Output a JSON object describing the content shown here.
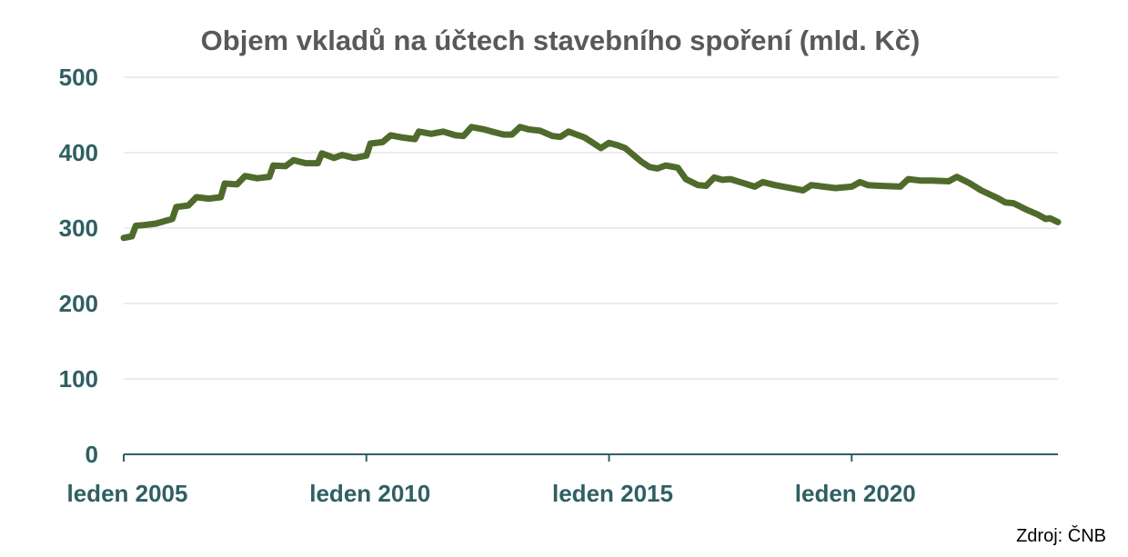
{
  "chart_data": {
    "type": "line",
    "title": "Objem vkladů na účtech stavebního spoření (mld. Kč)",
    "xlabel": "",
    "ylabel": "",
    "ylim": [
      0,
      500
    ],
    "yticks": [
      0,
      100,
      200,
      300,
      400,
      500
    ],
    "xlim": [
      "2005-01",
      "2024-04"
    ],
    "xticks": [
      {
        "value": "2005-01",
        "label": "leden 2005"
      },
      {
        "value": "2010-01",
        "label": "leden 2010"
      },
      {
        "value": "2015-01",
        "label": "leden 2015"
      },
      {
        "value": "2020-01",
        "label": "leden 2020"
      }
    ],
    "grid": true,
    "legend": "none",
    "line_color": "#4f6b2c",
    "series": [
      {
        "name": "",
        "points": [
          [
            "2005-01",
            287
          ],
          [
            "2005-03",
            289
          ],
          [
            "2005-04",
            303
          ],
          [
            "2005-06",
            304
          ],
          [
            "2005-09",
            306
          ],
          [
            "2005-11",
            309
          ],
          [
            "2006-01",
            312
          ],
          [
            "2006-02",
            328
          ],
          [
            "2006-05",
            330
          ],
          [
            "2006-07",
            341
          ],
          [
            "2006-10",
            339
          ],
          [
            "2007-01",
            341
          ],
          [
            "2007-02",
            359
          ],
          [
            "2007-05",
            358
          ],
          [
            "2007-07",
            369
          ],
          [
            "2007-10",
            366
          ],
          [
            "2008-01",
            368
          ],
          [
            "2008-02",
            383
          ],
          [
            "2008-05",
            382
          ],
          [
            "2008-07",
            390
          ],
          [
            "2008-10",
            386
          ],
          [
            "2009-01",
            386
          ],
          [
            "2009-02",
            399
          ],
          [
            "2009-05",
            393
          ],
          [
            "2009-07",
            397
          ],
          [
            "2009-10",
            393
          ],
          [
            "2010-01",
            396
          ],
          [
            "2010-02",
            412
          ],
          [
            "2010-05",
            414
          ],
          [
            "2010-07",
            423
          ],
          [
            "2010-10",
            420
          ],
          [
            "2011-01",
            418
          ],
          [
            "2011-02",
            428
          ],
          [
            "2011-05",
            425
          ],
          [
            "2011-08",
            428
          ],
          [
            "2011-11",
            423
          ],
          [
            "2012-01",
            422
          ],
          [
            "2012-03",
            434
          ],
          [
            "2012-06",
            431
          ],
          [
            "2012-08",
            428
          ],
          [
            "2012-11",
            424
          ],
          [
            "2013-01",
            424
          ],
          [
            "2013-03",
            434
          ],
          [
            "2013-05",
            431
          ],
          [
            "2013-08",
            429
          ],
          [
            "2013-11",
            422
          ],
          [
            "2014-01",
            421
          ],
          [
            "2014-03",
            428
          ],
          [
            "2014-05",
            424
          ],
          [
            "2014-07",
            420
          ],
          [
            "2014-09",
            413
          ],
          [
            "2014-11",
            406
          ],
          [
            "2015-01",
            413
          ],
          [
            "2015-03",
            410
          ],
          [
            "2015-05",
            406
          ],
          [
            "2015-07",
            397
          ],
          [
            "2015-09",
            388
          ],
          [
            "2015-11",
            381
          ],
          [
            "2016-01",
            379
          ],
          [
            "2016-03",
            383
          ],
          [
            "2016-06",
            380
          ],
          [
            "2016-08",
            365
          ],
          [
            "2016-11",
            357
          ],
          [
            "2017-01",
            356
          ],
          [
            "2017-03",
            367
          ],
          [
            "2017-05",
            364
          ],
          [
            "2017-07",
            365
          ],
          [
            "2017-10",
            360
          ],
          [
            "2018-01",
            355
          ],
          [
            "2018-03",
            361
          ],
          [
            "2018-06",
            357
          ],
          [
            "2018-09",
            354
          ],
          [
            "2019-01",
            350
          ],
          [
            "2019-03",
            357
          ],
          [
            "2019-06",
            355
          ],
          [
            "2019-09",
            353
          ],
          [
            "2020-01",
            355
          ],
          [
            "2020-03",
            361
          ],
          [
            "2020-05",
            357
          ],
          [
            "2020-08",
            356
          ],
          [
            "2021-01",
            355
          ],
          [
            "2021-03",
            365
          ],
          [
            "2021-06",
            363
          ],
          [
            "2021-09",
            363
          ],
          [
            "2022-01",
            362
          ],
          [
            "2022-03",
            368
          ],
          [
            "2022-06",
            360
          ],
          [
            "2022-09",
            350
          ],
          [
            "2023-01",
            340
          ],
          [
            "2023-03",
            334
          ],
          [
            "2023-05",
            333
          ],
          [
            "2023-08",
            325
          ],
          [
            "2023-11",
            318
          ],
          [
            "2024-01",
            312
          ],
          [
            "2024-02",
            313
          ],
          [
            "2024-04",
            308
          ]
        ]
      }
    ]
  },
  "footer": {
    "source": "Zdroj: ČNB"
  }
}
